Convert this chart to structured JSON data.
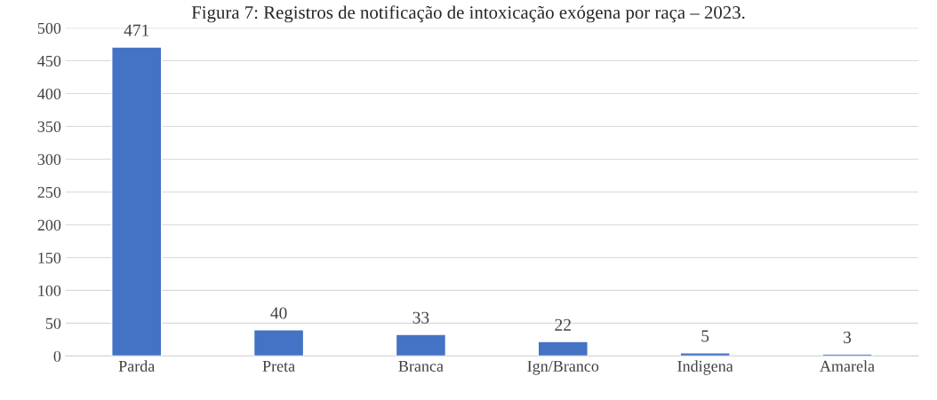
{
  "chart_data": {
    "type": "bar",
    "title": "Figura 7: Registros de notificação de intoxicação exógena por raça – 2023.",
    "categories": [
      "Parda",
      "Preta",
      "Branca",
      "Ign/Branco",
      "Indigena",
      "Amarela"
    ],
    "values": [
      471,
      40,
      33,
      22,
      5,
      3
    ],
    "color": "#4472c4",
    "ylim": [
      0,
      500
    ],
    "yticks": [
      0,
      50,
      100,
      150,
      200,
      250,
      300,
      350,
      400,
      450,
      500
    ],
    "grid": "y",
    "data_labels": true,
    "legend": false
  }
}
